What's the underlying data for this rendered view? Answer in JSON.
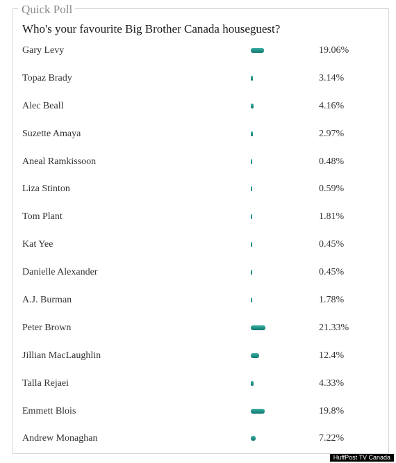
{
  "poll": {
    "legend": "Quick Poll",
    "question": "Who's your favourite Big Brother Canada houseguest?",
    "bar_color": "#1f8c82",
    "options": [
      {
        "label": "Gary Levy",
        "percent": "19.06%",
        "value": 19.06
      },
      {
        "label": "Topaz Brady",
        "percent": "3.14%",
        "value": 3.14
      },
      {
        "label": "Alec Beall",
        "percent": "4.16%",
        "value": 4.16
      },
      {
        "label": "Suzette Amaya",
        "percent": "2.97%",
        "value": 2.97
      },
      {
        "label": "Aneal Ramkissoon",
        "percent": "0.48%",
        "value": 0.48
      },
      {
        "label": "Liza Stinton",
        "percent": "0.59%",
        "value": 0.59
      },
      {
        "label": "Tom Plant",
        "percent": "1.81%",
        "value": 1.81
      },
      {
        "label": "Kat Yee",
        "percent": "0.45%",
        "value": 0.45
      },
      {
        "label": "Danielle Alexander",
        "percent": "0.45%",
        "value": 0.45
      },
      {
        "label": "A.J. Burman",
        "percent": "1.78%",
        "value": 1.78
      },
      {
        "label": "Peter Brown",
        "percent": "21.33%",
        "value": 21.33
      },
      {
        "label": "Jillian MacLaughlin",
        "percent": "12.4%",
        "value": 12.4
      },
      {
        "label": "Talla Rejaei",
        "percent": "4.33%",
        "value": 4.33
      },
      {
        "label": "Emmett Blois",
        "percent": "19.8%",
        "value": 19.8
      },
      {
        "label": "Andrew Monaghan",
        "percent": "7.22%",
        "value": 7.22
      }
    ]
  },
  "credit": "HuffPost TV Canada"
}
